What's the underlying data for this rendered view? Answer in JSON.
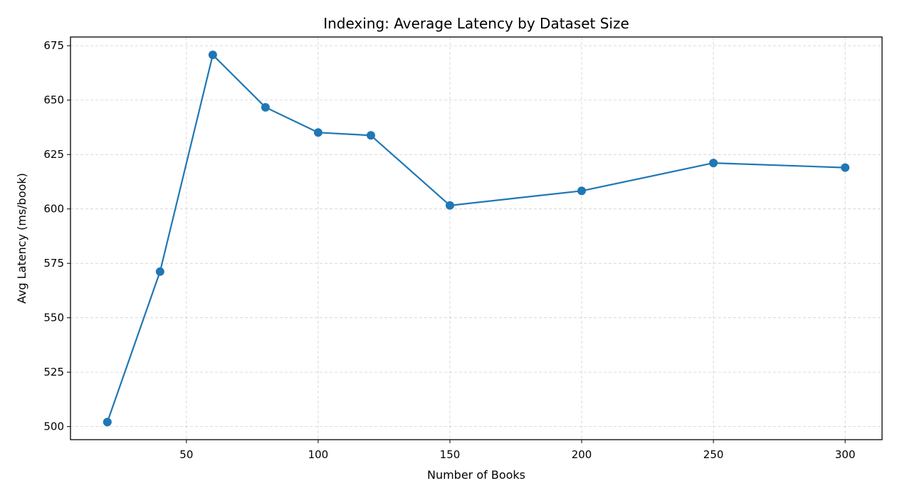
{
  "chart_data": {
    "type": "line",
    "title": "Indexing: Average Latency by Dataset Size",
    "xlabel": "Number of Books",
    "ylabel": "Avg Latency (ms/book)",
    "xlim": [
      6,
      314
    ],
    "ylim": [
      494,
      679
    ],
    "xticks": [
      50,
      100,
      150,
      200,
      250,
      300
    ],
    "yticks": [
      500,
      525,
      550,
      575,
      600,
      625,
      650,
      675
    ],
    "grid": true,
    "series": [
      {
        "color": "#1f77b4",
        "marker": "circle",
        "x": [
          20,
          40,
          60,
          80,
          100,
          120,
          150,
          200,
          250,
          300
        ],
        "y": [
          502.1,
          571.2,
          670.8,
          646.7,
          635.1,
          633.8,
          601.6,
          608.3,
          621.1,
          619.0
        ]
      }
    ]
  }
}
